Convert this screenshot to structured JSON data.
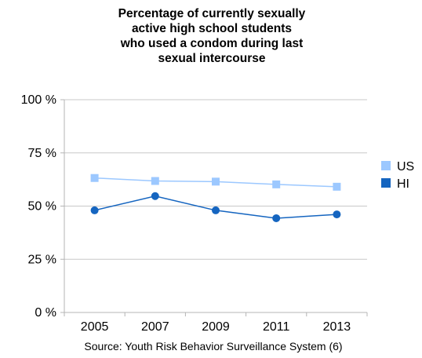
{
  "chart_data": {
    "type": "line",
    "title": "Percentage of currently sexually\nactive high school students\nwho used a condom during last\nsexual intercourse",
    "categories": [
      "2005",
      "2007",
      "2009",
      "2011",
      "2013"
    ],
    "y_ticks": [
      "0 %",
      "25 %",
      "50 %",
      "75 %",
      "100 %"
    ],
    "ylim": [
      0,
      100
    ],
    "grid": true,
    "legend_position": "right",
    "series": [
      {
        "name": "US",
        "color": "#9cc8ff",
        "marker": "square",
        "values": [
          63.2,
          61.8,
          61.5,
          60.2,
          59.1
        ]
      },
      {
        "name": "HI",
        "color": "#1565c0",
        "marker": "circle",
        "values": [
          48.0,
          54.7,
          48.0,
          44.3,
          46.1
        ]
      }
    ],
    "source": "Source: Youth Risk Behavior Surveillance System (6)"
  }
}
